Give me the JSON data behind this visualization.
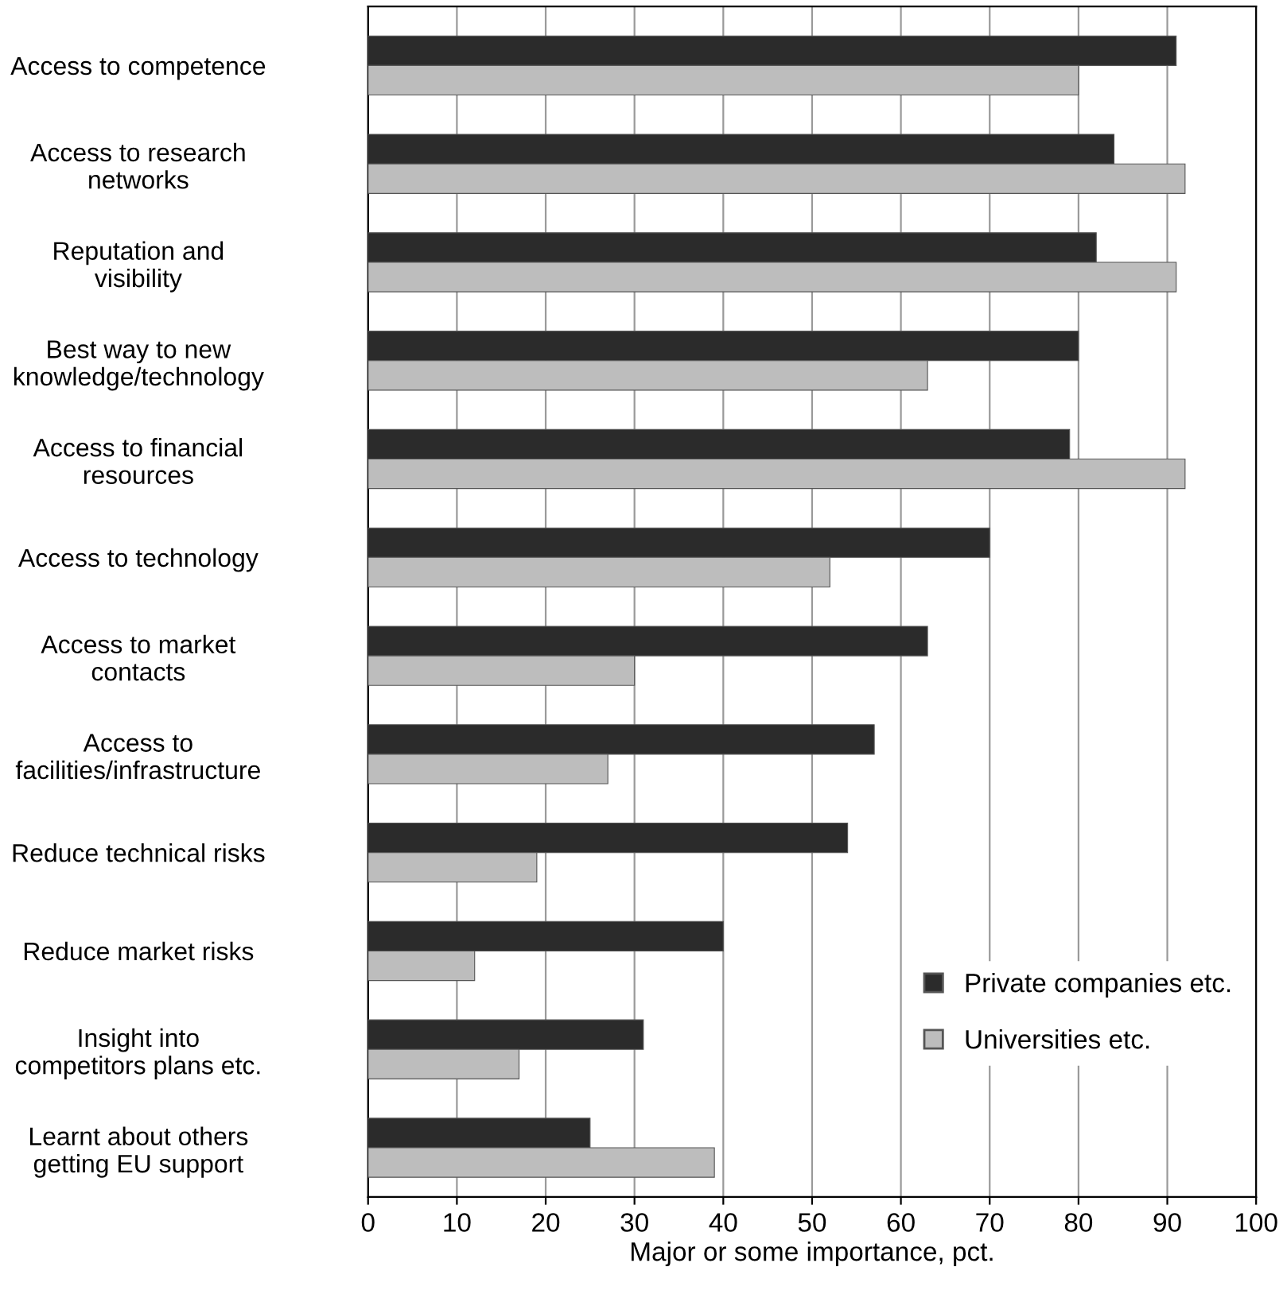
{
  "chart_data": {
    "type": "bar",
    "orientation": "horizontal",
    "xlabel": "Major or some importance, pct.",
    "categories": [
      "Access to competence",
      "Access to research\nnetworks",
      "Reputation and\nvisibility",
      "Best way to new\nknowledge/technology",
      "Access to financial\nresources",
      "Access to technology",
      "Access to market\ncontacts",
      "Access to\nfacilities/infrastructure",
      "Reduce technical risks",
      "Reduce market risks",
      "Insight into\ncompetitors plans etc.",
      "Learnt about others\ngetting EU support"
    ],
    "series": [
      {
        "name": "Private companies etc.",
        "color": "#2b2b2b",
        "values": [
          91,
          84,
          82,
          80,
          79,
          70,
          63,
          57,
          54,
          40,
          31,
          25
        ]
      },
      {
        "name": "Universities etc.",
        "color": "#bdbdbd",
        "values": [
          80,
          92,
          91,
          63,
          92,
          52,
          30,
          27,
          19,
          12,
          17,
          39
        ]
      }
    ],
    "xlim": [
      0,
      100
    ],
    "xticks": [
      0,
      10,
      20,
      30,
      40,
      50,
      60,
      70,
      80,
      90,
      100
    ],
    "grid": "x",
    "legend": "bottom right"
  }
}
